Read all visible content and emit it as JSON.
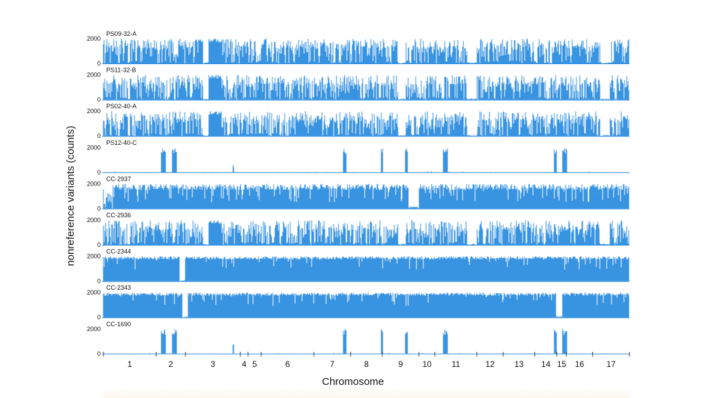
{
  "chart_data": {
    "type": "bar",
    "ylabel": "nonreference variants (counts)",
    "xlabel": "Chromosome",
    "ylim": [
      0,
      2000
    ],
    "ytick_labels": [
      "2000",
      "0"
    ],
    "chromosomes": [
      "1",
      "2",
      "3",
      "4",
      "5",
      "6",
      "7",
      "8",
      "9",
      "10",
      "11",
      "12",
      "13",
      "14",
      "15",
      "16",
      "17"
    ],
    "chromosome_bounds_fraction": [
      0.0,
      0.1,
      0.156,
      0.26,
      0.275,
      0.3,
      0.4,
      0.47,
      0.53,
      0.6,
      0.63,
      0.71,
      0.76,
      0.82,
      0.862,
      0.88,
      0.93,
      1.0
    ],
    "bar_color": "#2f8ee0",
    "tracks": [
      {
        "name": "PS09-32-A",
        "profile": "mixed",
        "low_regions": [
          [
            0.047,
            0.05
          ],
          [
            0.19,
            0.2
          ],
          [
            0.56,
            0.575
          ],
          [
            0.692,
            0.71
          ],
          [
            0.944,
            0.962
          ]
        ],
        "high_regions": [
          [
            0.18,
            0.19
          ],
          [
            0.191,
            0.225
          ]
        ]
      },
      {
        "name": "PS11-32-B",
        "profile": "mixed",
        "low_regions": [
          [
            0.047,
            0.05
          ],
          [
            0.19,
            0.2
          ],
          [
            0.56,
            0.575
          ],
          [
            0.692,
            0.71
          ],
          [
            0.944,
            0.962
          ]
        ],
        "high_regions": [
          [
            0.191,
            0.225
          ]
        ]
      },
      {
        "name": "PS02-40-A",
        "profile": "mixed",
        "low_regions": [
          [
            0.047,
            0.05
          ],
          [
            0.19,
            0.2
          ],
          [
            0.56,
            0.575
          ],
          [
            0.692,
            0.71
          ],
          [
            0.944,
            0.962
          ]
        ],
        "high_regions": [
          [
            0.191,
            0.225
          ]
        ]
      },
      {
        "name": "PS12-40-C",
        "profile": "sparse",
        "peaks": [
          [
            0.109,
            0.118
          ],
          [
            0.13,
            0.139
          ],
          [
            0.456,
            0.462
          ],
          [
            0.528,
            0.531
          ],
          [
            0.573,
            0.579
          ],
          [
            0.645,
            0.655
          ],
          [
            0.857,
            0.862
          ],
          [
            0.872,
            0.882
          ]
        ],
        "small_peaks": [
          [
            0.246,
            0.248,
            0.3
          ]
        ]
      },
      {
        "name": "CC-2937",
        "profile": "dense",
        "low_regions": [
          [
            0.58,
            0.595
          ],
          [
            0.595,
            0.6
          ]
        ],
        "mixed_regions": [
          [
            0.0,
            0.02
          ]
        ]
      },
      {
        "name": "CC-2936",
        "profile": "mixed",
        "low_regions": [
          [
            0.047,
            0.05
          ],
          [
            0.19,
            0.2
          ],
          [
            0.56,
            0.575
          ],
          [
            0.692,
            0.71
          ],
          [
            0.944,
            0.962
          ]
        ],
        "high_regions": [
          [
            0.191,
            0.225
          ]
        ]
      },
      {
        "name": "CC-2344",
        "profile": "full",
        "low_regions": [
          [
            0.145,
            0.152
          ],
          [
            0.15,
            0.155
          ]
        ]
      },
      {
        "name": "CC-2343",
        "profile": "full",
        "low_regions": [
          [
            0.15,
            0.16
          ],
          [
            0.86,
            0.872
          ]
        ]
      },
      {
        "name": "CC-1690",
        "profile": "sparse",
        "peaks": [
          [
            0.109,
            0.118
          ],
          [
            0.13,
            0.139
          ],
          [
            0.456,
            0.462
          ],
          [
            0.528,
            0.531
          ],
          [
            0.573,
            0.579
          ],
          [
            0.645,
            0.655
          ],
          [
            0.857,
            0.862
          ],
          [
            0.872,
            0.882
          ]
        ],
        "small_peaks": [
          [
            0.246,
            0.248,
            0.5
          ]
        ]
      }
    ]
  }
}
